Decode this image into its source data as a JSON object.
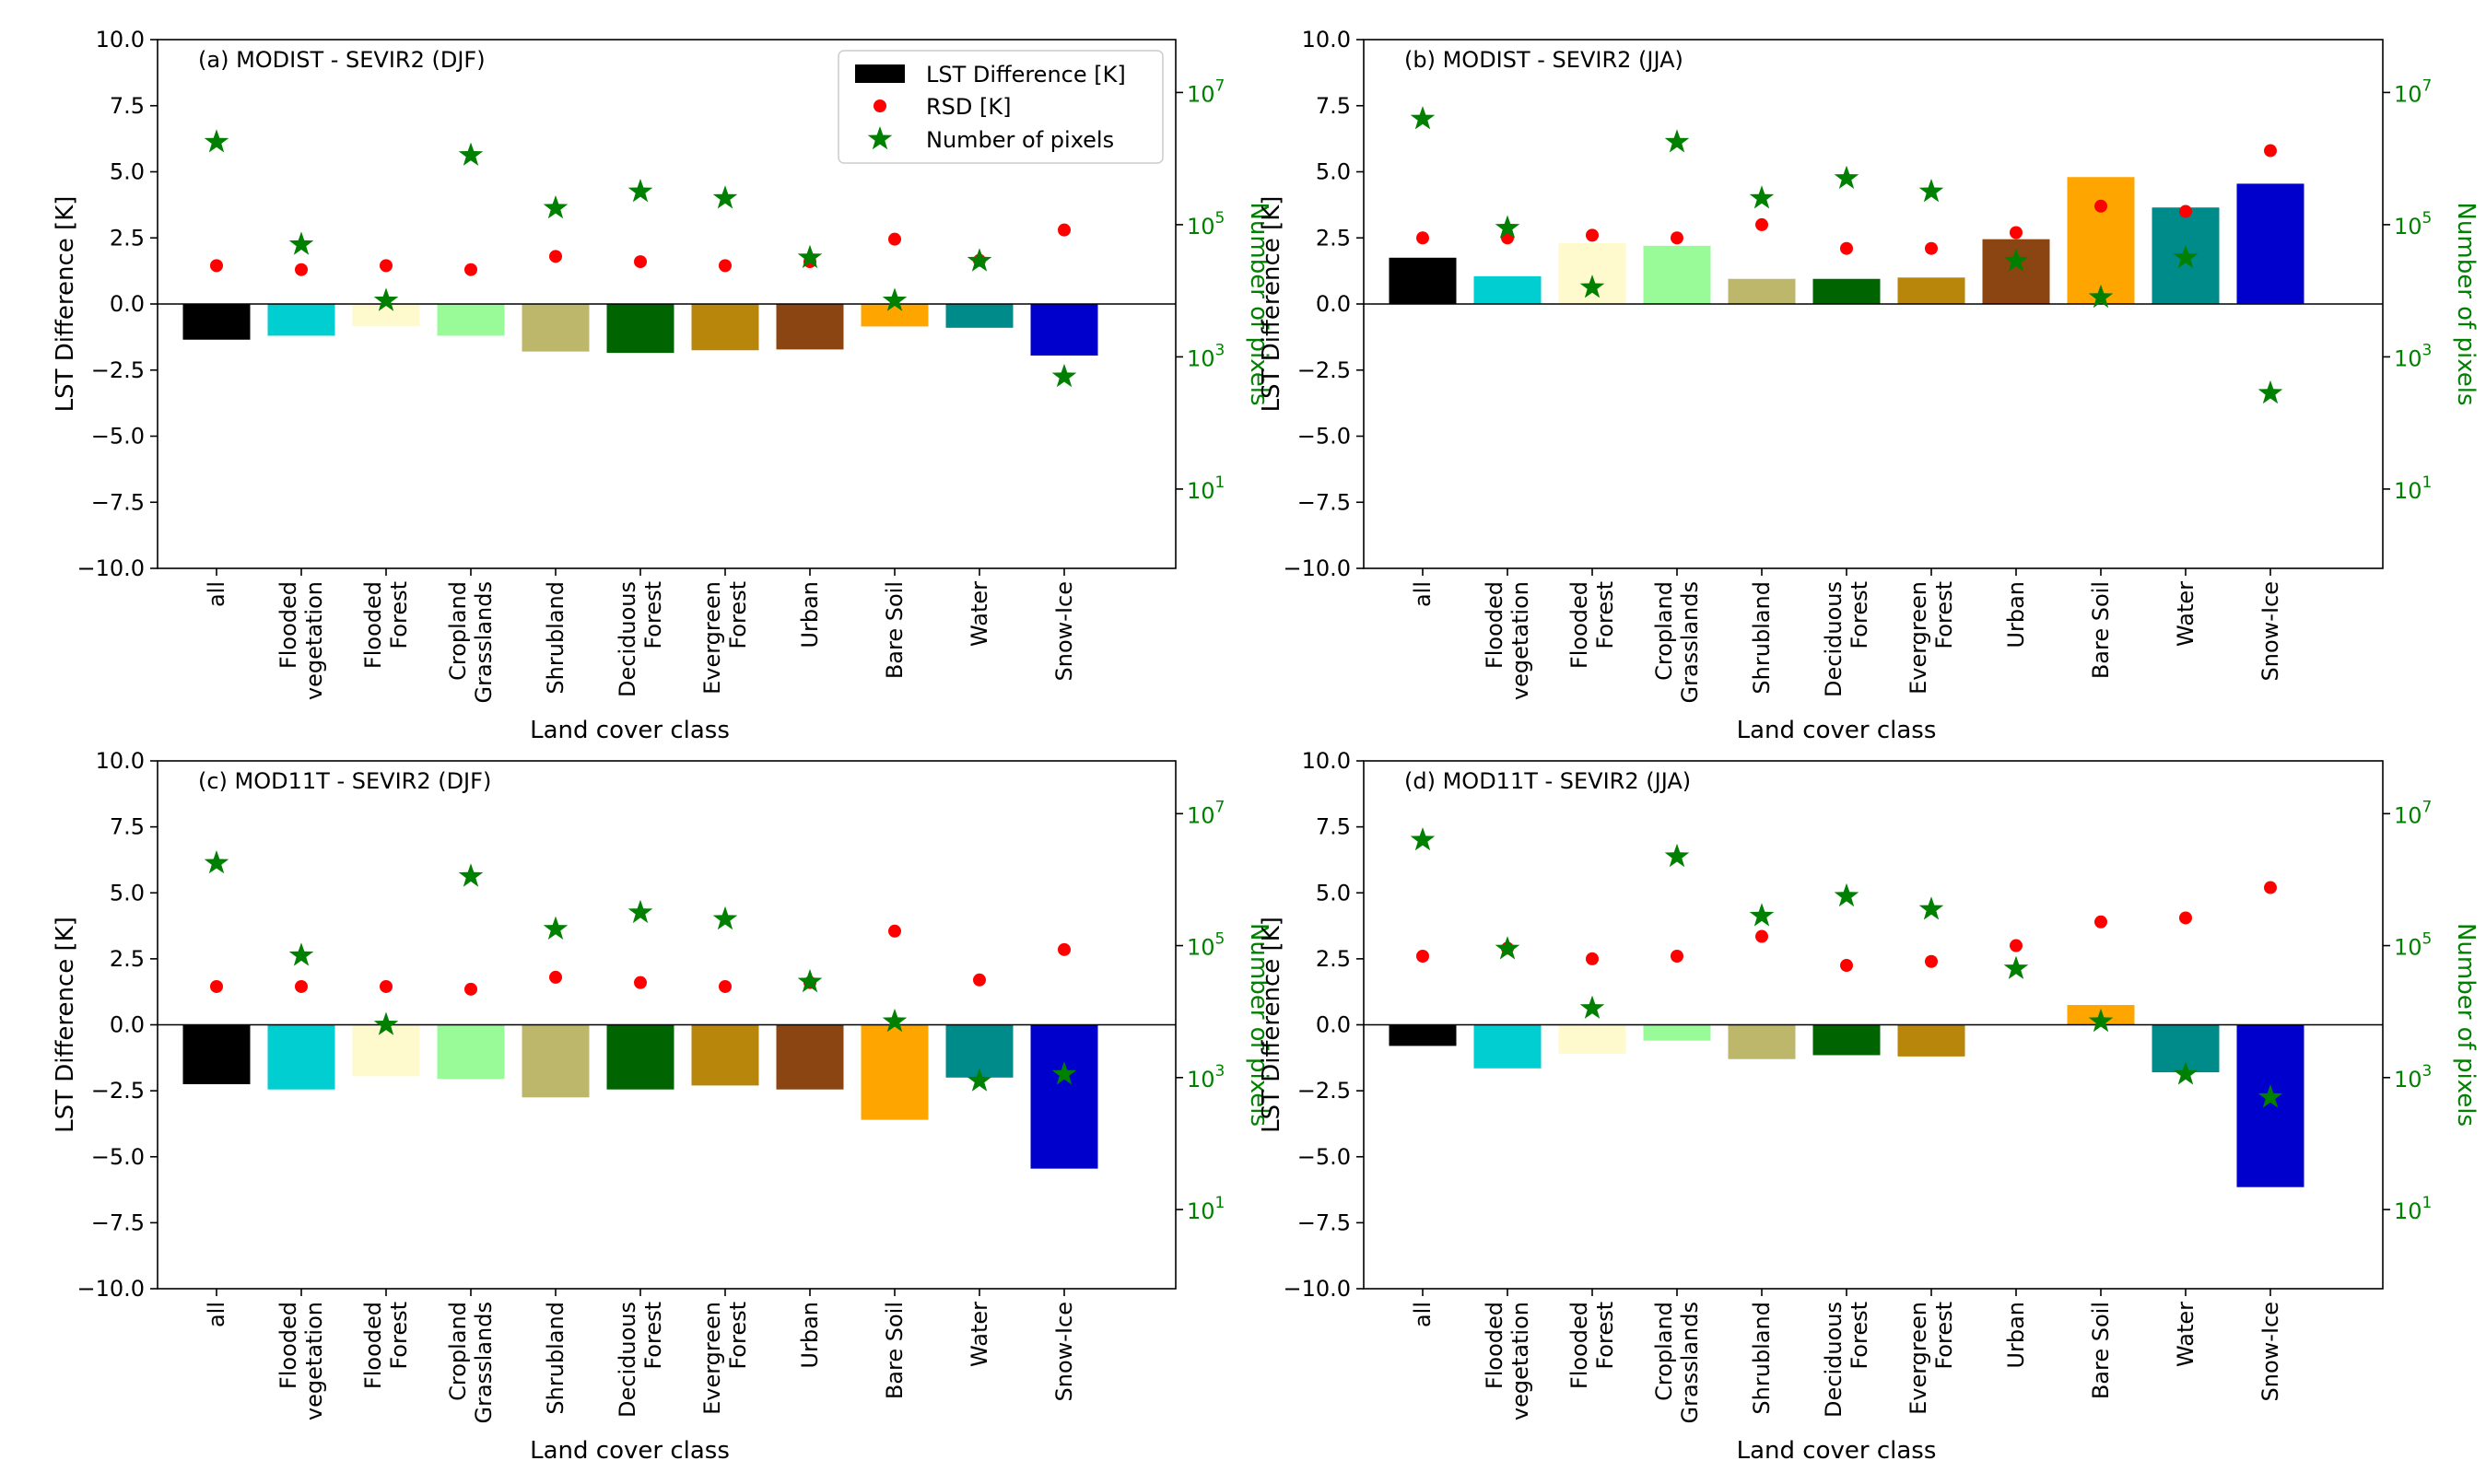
{
  "colors": {
    "classes": [
      "#000000",
      "#00CED1",
      "#FFFACD",
      "#98FB98",
      "#BDB76B",
      "#006400",
      "#B8860B",
      "#8B4513",
      "#FFA500",
      "#008B8B",
      "#0000CD"
    ],
    "rsd": "#FF0000",
    "pixels": "#008000",
    "axis": "#000000"
  },
  "legend": {
    "lst": "LST Difference [K]",
    "rsd": "RSD [K]",
    "pixels": "Number of pixels"
  },
  "chart_data": [
    {
      "type": "bar",
      "title": "(a) MODIST - SEVIR2 (DJF)",
      "xlabel": "Land cover class",
      "ylabel": "LST Difference [K]",
      "y2label": "Number of pixels",
      "ylim": [
        -10,
        10
      ],
      "y2lim_log10": [
        -0.2,
        7.8
      ],
      "categories": [
        "all",
        "Flooded\nvegetation",
        "Flooded\nForest",
        "Cropland\nGrasslands",
        "Shrubland",
        "Deciduous\nForest",
        "Evergreen\nForest",
        "Urban",
        "Bare Soil",
        "Water",
        "Snow-Ice"
      ],
      "yticks": [
        "10.0",
        "7.5",
        "5.0",
        "2.5",
        "0.0",
        "−2.5",
        "−5.0",
        "−7.5",
        "−10.0"
      ],
      "y2ticks": [
        {
          "base": "10",
          "exp": "7"
        },
        {
          "base": "10",
          "exp": "5"
        },
        {
          "base": "10",
          "exp": "3"
        },
        {
          "base": "10",
          "exp": "1"
        }
      ],
      "legend": true,
      "series": [
        {
          "name": "LST Difference [K]",
          "kind": "bar",
          "values": [
            -1.35,
            -1.2,
            -0.85,
            -1.2,
            -1.8,
            -1.85,
            -1.75,
            -1.72,
            -0.85,
            -0.9,
            -1.95
          ]
        },
        {
          "name": "RSD [K]",
          "kind": "point",
          "values": [
            1.45,
            1.3,
            1.45,
            1.3,
            1.8,
            1.6,
            1.45,
            1.6,
            2.45,
            1.65,
            2.8
          ]
        },
        {
          "name": "Number of pixels",
          "kind": "star",
          "log10_values": [
            6.25,
            4.7,
            3.85,
            6.05,
            5.25,
            5.5,
            5.4,
            4.5,
            3.85,
            4.45,
            2.7
          ]
        }
      ]
    },
    {
      "type": "bar",
      "title": "(b) MODIST - SEVIR2 (JJA)",
      "xlabel": "Land cover class",
      "ylabel": "LST Difference [K]",
      "y2label": "Number of pixels",
      "ylim": [
        -10,
        10
      ],
      "y2lim_log10": [
        -0.2,
        7.8
      ],
      "categories": [
        "all",
        "Flooded\nvegetation",
        "Flooded\nForest",
        "Cropland\nGrasslands",
        "Shrubland",
        "Deciduous\nForest",
        "Evergreen\nForest",
        "Urban",
        "Bare Soil",
        "Water",
        "Snow-Ice"
      ],
      "yticks": [
        "10.0",
        "7.5",
        "5.0",
        "2.5",
        "0.0",
        "−2.5",
        "−5.0",
        "−7.5",
        "−10.0"
      ],
      "y2ticks": [
        {
          "base": "10",
          "exp": "7"
        },
        {
          "base": "10",
          "exp": "5"
        },
        {
          "base": "10",
          "exp": "3"
        },
        {
          "base": "10",
          "exp": "1"
        }
      ],
      "legend": false,
      "series": [
        {
          "name": "LST Difference [K]",
          "kind": "bar",
          "values": [
            1.75,
            1.05,
            2.3,
            2.2,
            0.95,
            0.95,
            1.0,
            2.45,
            4.8,
            3.65,
            4.55
          ]
        },
        {
          "name": "RSD [K]",
          "kind": "point",
          "values": [
            2.5,
            2.5,
            2.6,
            2.5,
            3.0,
            2.1,
            2.1,
            2.7,
            3.7,
            3.5,
            5.8
          ]
        },
        {
          "name": "Number of pixels",
          "kind": "star",
          "log10_values": [
            6.6,
            4.95,
            4.05,
            6.25,
            5.4,
            5.7,
            5.5,
            4.45,
            3.9,
            4.5,
            2.45
          ]
        }
      ]
    },
    {
      "type": "bar",
      "title": "(c) MOD11T - SEVIR2 (DJF)",
      "xlabel": "Land cover class",
      "ylabel": "LST Difference [K]",
      "y2label": "Number of pixels",
      "ylim": [
        -10,
        10
      ],
      "y2lim_log10": [
        -0.2,
        7.8
      ],
      "categories": [
        "all",
        "Flooded\nvegetation",
        "Flooded\nForest",
        "Cropland\nGrasslands",
        "Shrubland",
        "Deciduous\nForest",
        "Evergreen\nForest",
        "Urban",
        "Bare Soil",
        "Water",
        "Snow-Ice"
      ],
      "yticks": [
        "10.0",
        "7.5",
        "5.0",
        "2.5",
        "0.0",
        "−2.5",
        "−5.0",
        "−7.5",
        "−10.0"
      ],
      "y2ticks": [
        {
          "base": "10",
          "exp": "7"
        },
        {
          "base": "10",
          "exp": "5"
        },
        {
          "base": "10",
          "exp": "3"
        },
        {
          "base": "10",
          "exp": "1"
        }
      ],
      "legend": false,
      "series": [
        {
          "name": "LST Difference [K]",
          "kind": "bar",
          "values": [
            -2.25,
            -2.45,
            -1.95,
            -2.05,
            -2.75,
            -2.45,
            -2.3,
            -2.45,
            -3.6,
            -2.0,
            -5.45
          ]
        },
        {
          "name": "RSD [K]",
          "kind": "point",
          "values": [
            1.45,
            1.45,
            1.45,
            1.35,
            1.8,
            1.6,
            1.45,
            1.6,
            3.55,
            1.7,
            2.85
          ]
        },
        {
          "name": "Number of pixels",
          "kind": "star",
          "log10_values": [
            6.25,
            4.85,
            3.8,
            6.05,
            5.25,
            5.5,
            5.4,
            4.45,
            3.85,
            2.95,
            3.05
          ]
        }
      ]
    },
    {
      "type": "bar",
      "title": "(d) MOD11T - SEVIR2 (JJA)",
      "xlabel": "Land cover class",
      "ylabel": "LST Difference [K]",
      "y2label": "Number of pixels",
      "ylim": [
        -10,
        10
      ],
      "y2lim_log10": [
        -0.2,
        7.8
      ],
      "categories": [
        "all",
        "Flooded\nvegetation",
        "Flooded\nForest",
        "Cropland\nGrasslands",
        "Shrubland",
        "Deciduous\nForest",
        "Evergreen\nForest",
        "Urban",
        "Bare Soil",
        "Water",
        "Snow-Ice"
      ],
      "yticks": [
        "10.0",
        "7.5",
        "5.0",
        "2.5",
        "0.0",
        "−2.5",
        "−5.0",
        "−7.5",
        "−10.0"
      ],
      "y2ticks": [
        {
          "base": "10",
          "exp": "7"
        },
        {
          "base": "10",
          "exp": "5"
        },
        {
          "base": "10",
          "exp": "3"
        },
        {
          "base": "10",
          "exp": "1"
        }
      ],
      "legend": false,
      "series": [
        {
          "name": "LST Difference [K]",
          "kind": "bar",
          "values": [
            -0.8,
            -1.65,
            -1.1,
            -0.6,
            -1.3,
            -1.15,
            -1.2,
            0.0,
            0.75,
            -1.8,
            -6.15
          ]
        },
        {
          "name": "RSD [K]",
          "kind": "point",
          "values": [
            2.6,
            2.9,
            2.5,
            2.6,
            3.35,
            2.25,
            2.4,
            3.0,
            3.9,
            4.05,
            5.2
          ]
        },
        {
          "name": "Number of pixels",
          "kind": "star",
          "log10_values": [
            6.6,
            4.95,
            4.05,
            6.35,
            5.45,
            5.75,
            5.55,
            4.65,
            3.85,
            3.05,
            2.7
          ]
        }
      ]
    }
  ]
}
